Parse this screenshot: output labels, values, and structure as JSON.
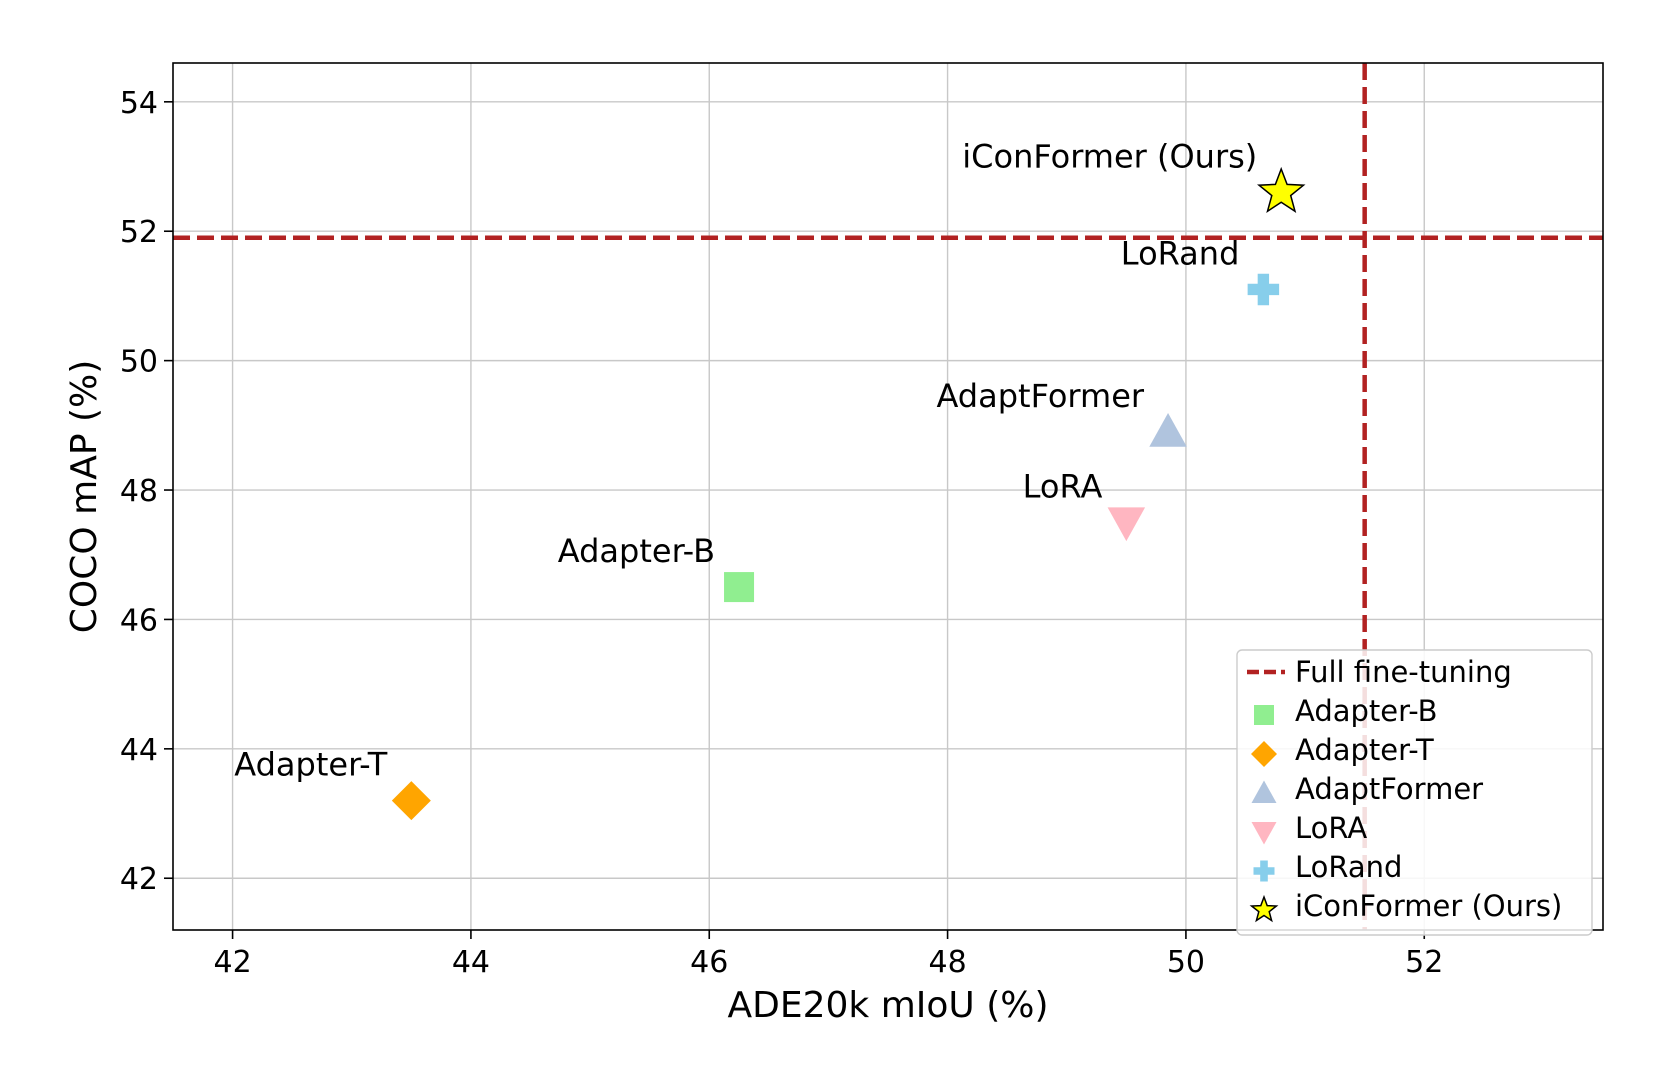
{
  "chart_data": {
    "type": "scatter",
    "xlabel": "ADE20k mIoU (%)",
    "ylabel": "COCO mAP (%)",
    "xlim": [
      41.5,
      53.5
    ],
    "ylim": [
      41.2,
      54.6
    ],
    "xticks": [
      42,
      44,
      46,
      48,
      50,
      52
    ],
    "yticks": [
      42,
      44,
      46,
      48,
      50,
      52,
      54
    ],
    "grid": true,
    "legend_position": "lower-right",
    "reference_lines": {
      "name": "Full fine-tuning",
      "x": 51.5,
      "y": 51.9,
      "color": "#b22222",
      "style": "dashed"
    },
    "series": [
      {
        "name": "Adapter-B",
        "x": 46.25,
        "y": 46.5,
        "marker": "square",
        "color": "#90ee90",
        "label": "Adapter-B"
      },
      {
        "name": "Adapter-T",
        "x": 43.5,
        "y": 43.2,
        "marker": "diamond",
        "color": "#ffa500",
        "label": "Adapter-T"
      },
      {
        "name": "AdaptFormer",
        "x": 49.85,
        "y": 48.9,
        "marker": "triangle-up",
        "color": "#b0c4de",
        "label": "AdaptFormer"
      },
      {
        "name": "LoRA",
        "x": 49.5,
        "y": 47.5,
        "marker": "triangle-down",
        "color": "#ffb6c1",
        "label": "LoRA"
      },
      {
        "name": "LoRand",
        "x": 50.65,
        "y": 51.1,
        "marker": "plus",
        "color": "#87ceeb",
        "label": "LoRand"
      },
      {
        "name": "iConFormer (Ours)",
        "x": 50.8,
        "y": 52.6,
        "marker": "star",
        "color": "#ffff00",
        "label": "iConFormer (Ours)"
      }
    ],
    "legend_entries": [
      "Full fine-tuning",
      "Adapter-B",
      "Adapter-T",
      "AdaptFormer",
      "LoRA",
      "LoRand",
      "iConFormer (Ours)"
    ]
  }
}
